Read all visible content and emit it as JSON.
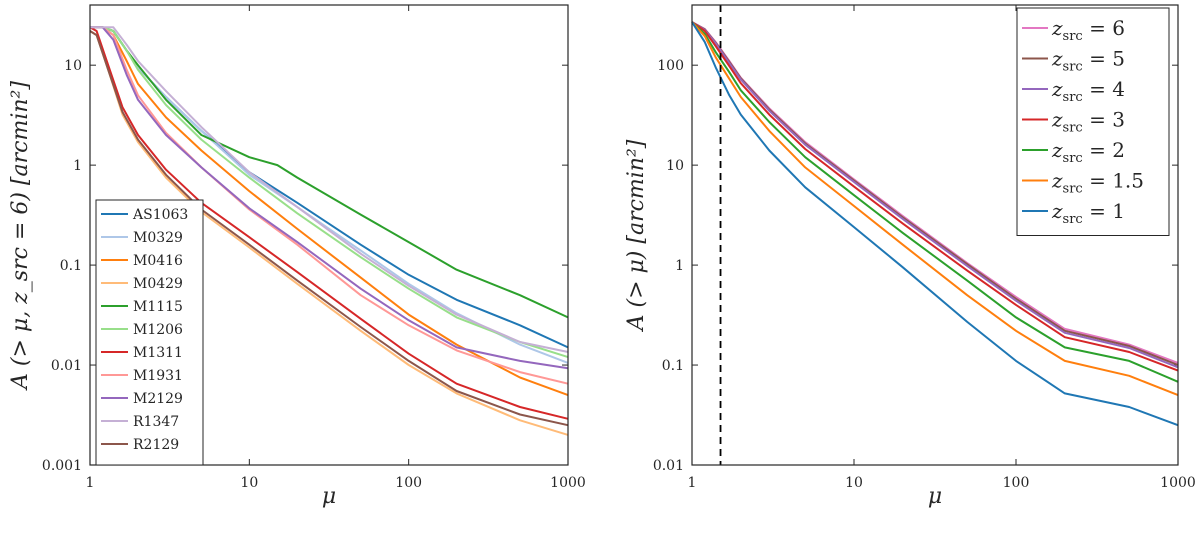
{
  "chart_data": [
    {
      "type": "line",
      "xscale": "log",
      "yscale": "log",
      "xlim": [
        1,
        1000
      ],
      "ylim": [
        0.001,
        40
      ],
      "xticks": [
        1,
        10,
        100,
        1000
      ],
      "xtick_labels": [
        "1",
        "10",
        "100",
        "1000"
      ],
      "yticks": [
        0.001,
        0.01,
        0.1,
        1,
        10
      ],
      "ytick_labels": [
        "0.001",
        "0.01",
        "0.1",
        "1",
        "10"
      ],
      "xlabel": "μ",
      "ylabel": "A (> μ, z_src = 6) [arcmin²]",
      "legend_position": "bottom-left",
      "series": [
        {
          "name": "AS1063",
          "color": "#1f77b4",
          "x": [
            1,
            1.2,
            1.4,
            1.7,
            2,
            3,
            5,
            10,
            20,
            50,
            100,
            200,
            500,
            1000
          ],
          "y": [
            24,
            24,
            22,
            14,
            9.5,
            4.8,
            2.2,
            0.85,
            0.42,
            0.16,
            0.08,
            0.045,
            0.025,
            0.015
          ]
        },
        {
          "name": "M0329",
          "color": "#aec7e8",
          "x": [
            1,
            1.2,
            1.4,
            1.7,
            2,
            3,
            5,
            10,
            20,
            50,
            100,
            200,
            500,
            1000
          ],
          "y": [
            24,
            24,
            22,
            14,
            9.5,
            4.8,
            2.2,
            0.8,
            0.38,
            0.14,
            0.065,
            0.033,
            0.016,
            0.0105
          ]
        },
        {
          "name": "M0416",
          "color": "#ff7f0e",
          "x": [
            1,
            1.2,
            1.4,
            1.7,
            2,
            3,
            5,
            10,
            20,
            50,
            100,
            200,
            500,
            1000
          ],
          "y": [
            24,
            24,
            20,
            11,
            6.5,
            3.0,
            1.4,
            0.55,
            0.23,
            0.075,
            0.032,
            0.016,
            0.0075,
            0.005
          ]
        },
        {
          "name": "M0429",
          "color": "#ffbb78",
          "x": [
            1,
            1.1,
            1.3,
            1.6,
            2,
            3,
            5,
            10,
            20,
            50,
            100,
            200,
            500,
            1000
          ],
          "y": [
            22,
            20,
            9,
            3.2,
            1.7,
            0.75,
            0.34,
            0.15,
            0.065,
            0.022,
            0.01,
            0.0052,
            0.0028,
            0.002
          ]
        },
        {
          "name": "M1115",
          "color": "#2ca02c",
          "x": [
            1,
            1.2,
            1.4,
            1.7,
            2,
            3,
            5,
            10,
            15,
            20,
            50,
            100,
            200,
            500,
            1000
          ],
          "y": [
            24,
            24,
            22,
            14,
            10,
            4.5,
            2.0,
            1.2,
            1.0,
            0.75,
            0.32,
            0.17,
            0.09,
            0.05,
            0.03
          ]
        },
        {
          "name": "M1206",
          "color": "#98df8a",
          "x": [
            1,
            1.2,
            1.4,
            1.7,
            2,
            3,
            5,
            10,
            20,
            50,
            100,
            200,
            500,
            1000
          ],
          "y": [
            24,
            24,
            22,
            14,
            9,
            4.0,
            1.8,
            0.75,
            0.33,
            0.12,
            0.058,
            0.03,
            0.017,
            0.012
          ]
        },
        {
          "name": "M1311",
          "color": "#d62728",
          "x": [
            1,
            1.1,
            1.3,
            1.6,
            2,
            3,
            5,
            10,
            20,
            50,
            100,
            200,
            500,
            1000
          ],
          "y": [
            24,
            22,
            10,
            3.8,
            2.0,
            0.9,
            0.42,
            0.19,
            0.085,
            0.029,
            0.013,
            0.0065,
            0.0038,
            0.0029
          ]
        },
        {
          "name": "M1931",
          "color": "#ff9896",
          "x": [
            1,
            1.2,
            1.4,
            1.7,
            2,
            3,
            5,
            10,
            20,
            50,
            100,
            200,
            500,
            1000
          ],
          "y": [
            24,
            24,
            20,
            9,
            5,
            2.1,
            0.95,
            0.36,
            0.16,
            0.05,
            0.025,
            0.014,
            0.0085,
            0.0065
          ]
        },
        {
          "name": "M2129",
          "color": "#9467bd",
          "x": [
            1,
            1.2,
            1.4,
            1.7,
            2,
            3,
            5,
            10,
            20,
            50,
            100,
            200,
            500,
            1000
          ],
          "y": [
            24,
            24,
            18,
            8,
            4.5,
            2.0,
            0.95,
            0.37,
            0.17,
            0.058,
            0.028,
            0.015,
            0.011,
            0.0093
          ]
        },
        {
          "name": "R1347",
          "color": "#c5b0d5",
          "x": [
            1,
            1.2,
            1.4,
            1.7,
            2,
            3,
            5,
            10,
            20,
            50,
            100,
            200,
            500,
            1000
          ],
          "y": [
            24,
            24,
            24,
            16,
            11,
            5.5,
            2.4,
            0.85,
            0.38,
            0.13,
            0.062,
            0.032,
            0.017,
            0.0135
          ]
        },
        {
          "name": "R2129",
          "color": "#8c564b",
          "x": [
            1,
            1.1,
            1.3,
            1.6,
            2,
            3,
            5,
            10,
            20,
            50,
            100,
            200,
            500,
            1000
          ],
          "y": [
            22,
            20,
            9,
            3.4,
            1.8,
            0.8,
            0.36,
            0.16,
            0.07,
            0.024,
            0.011,
            0.0055,
            0.0032,
            0.0025
          ]
        }
      ]
    },
    {
      "type": "line",
      "xscale": "log",
      "yscale": "log",
      "xlim": [
        1,
        1000
      ],
      "ylim": [
        0.01,
        400
      ],
      "xticks": [
        1,
        10,
        100,
        1000
      ],
      "xtick_labels": [
        "1",
        "10",
        "100",
        "1000"
      ],
      "yticks": [
        0.01,
        0.1,
        1,
        10,
        100
      ],
      "ytick_labels": [
        "0.01",
        "0.1",
        "1",
        "10",
        "100"
      ],
      "xlabel": "μ",
      "ylabel": "A (> μ) [arcmin²]",
      "legend_position": "top-right",
      "vline": {
        "x": 1.5,
        "style": "dashed",
        "color": "#000000"
      },
      "series": [
        {
          "name": "z_src = 6",
          "label_prefix": "z",
          "label_sub": "src",
          "label_suffix": " = 6",
          "color": "#e377c2",
          "x": [
            1,
            1.2,
            1.4,
            1.7,
            2,
            3,
            5,
            10,
            20,
            50,
            100,
            200,
            500,
            1000
          ],
          "y": [
            270,
            230,
            170,
            110,
            75,
            37,
            17,
            7.2,
            3.1,
            1.05,
            0.48,
            0.23,
            0.16,
            0.105
          ]
        },
        {
          "name": "z_src = 5",
          "label_prefix": "z",
          "label_sub": "src",
          "label_suffix": " = 5",
          "color": "#8c564b",
          "x": [
            1,
            1.2,
            1.4,
            1.7,
            2,
            3,
            5,
            10,
            20,
            50,
            100,
            200,
            500,
            1000
          ],
          "y": [
            270,
            228,
            168,
            108,
            74,
            36,
            16.5,
            7.0,
            3.0,
            1.02,
            0.46,
            0.22,
            0.155,
            0.1
          ]
        },
        {
          "name": "z_src = 4",
          "label_prefix": "z",
          "label_sub": "src",
          "label_suffix": " = 4",
          "color": "#9467bd",
          "x": [
            1,
            1.2,
            1.4,
            1.7,
            2,
            3,
            5,
            10,
            20,
            50,
            100,
            200,
            500,
            1000
          ],
          "y": [
            270,
            225,
            165,
            105,
            72,
            35,
            16,
            6.8,
            2.9,
            0.98,
            0.44,
            0.21,
            0.148,
            0.095
          ]
        },
        {
          "name": "z_src = 3",
          "label_prefix": "z",
          "label_sub": "src",
          "label_suffix": " = 3",
          "color": "#d62728",
          "x": [
            1,
            1.2,
            1.4,
            1.7,
            2,
            3,
            5,
            10,
            20,
            50,
            100,
            200,
            500,
            1000
          ],
          "y": [
            270,
            220,
            155,
            98,
            66,
            32,
            14.5,
            6.1,
            2.6,
            0.88,
            0.4,
            0.19,
            0.135,
            0.088
          ]
        },
        {
          "name": "z_src = 2",
          "label_prefix": "z",
          "label_sub": "src",
          "label_suffix": " = 2",
          "color": "#2ca02c",
          "x": [
            1,
            1.2,
            1.4,
            1.7,
            2,
            3,
            5,
            10,
            20,
            50,
            100,
            200,
            500,
            1000
          ],
          "y": [
            270,
            205,
            135,
            85,
            56,
            27,
            12,
            5.0,
            2.1,
            0.7,
            0.3,
            0.15,
            0.11,
            0.068
          ]
        },
        {
          "name": "z_src = 1.5",
          "label_prefix": "z",
          "label_sub": "src",
          "label_suffix": " = 1.5",
          "color": "#ff7f0e",
          "x": [
            1,
            1.2,
            1.4,
            1.7,
            2,
            3,
            5,
            10,
            20,
            50,
            100,
            200,
            500,
            1000
          ],
          "y": [
            270,
            195,
            120,
            73,
            48,
            22,
            9.5,
            3.9,
            1.6,
            0.5,
            0.22,
            0.11,
            0.078,
            0.05
          ]
        },
        {
          "name": "z_src = 1",
          "label_prefix": "z",
          "label_sub": "src",
          "label_suffix": " = 1",
          "color": "#1f77b4",
          "x": [
            1,
            1.2,
            1.4,
            1.7,
            2,
            3,
            5,
            10,
            20,
            50,
            100,
            200,
            500,
            1000
          ],
          "y": [
            270,
            170,
            95,
            50,
            32,
            14,
            6.0,
            2.4,
            0.95,
            0.27,
            0.11,
            0.052,
            0.038,
            0.025
          ]
        }
      ]
    }
  ]
}
